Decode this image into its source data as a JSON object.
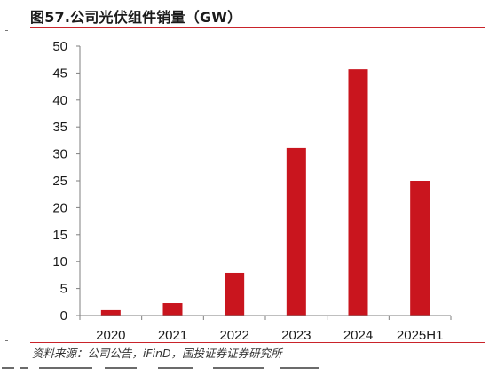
{
  "title": "图57.公司光伏组件销量（GW）",
  "source": "资料来源：公司公告，iFinD，国投证券证券研究所",
  "chart_data": {
    "type": "bar",
    "title": "图57.公司光伏组件销量（GW）",
    "categories": [
      "2020",
      "2021",
      "2022",
      "2023",
      "2024",
      "2025H1"
    ],
    "values": [
      1.0,
      2.3,
      7.9,
      31.1,
      45.7,
      25.0
    ],
    "ylim": [
      0,
      50
    ],
    "yticks": [
      0,
      5,
      10,
      15,
      20,
      25,
      30,
      35,
      40,
      45,
      50
    ],
    "xlabel": "",
    "ylabel": "",
    "grid": false,
    "legend": "none",
    "bar_color": "#c9151e",
    "axis_color": "#7f7f7f",
    "rule_color": "#c9232a"
  }
}
